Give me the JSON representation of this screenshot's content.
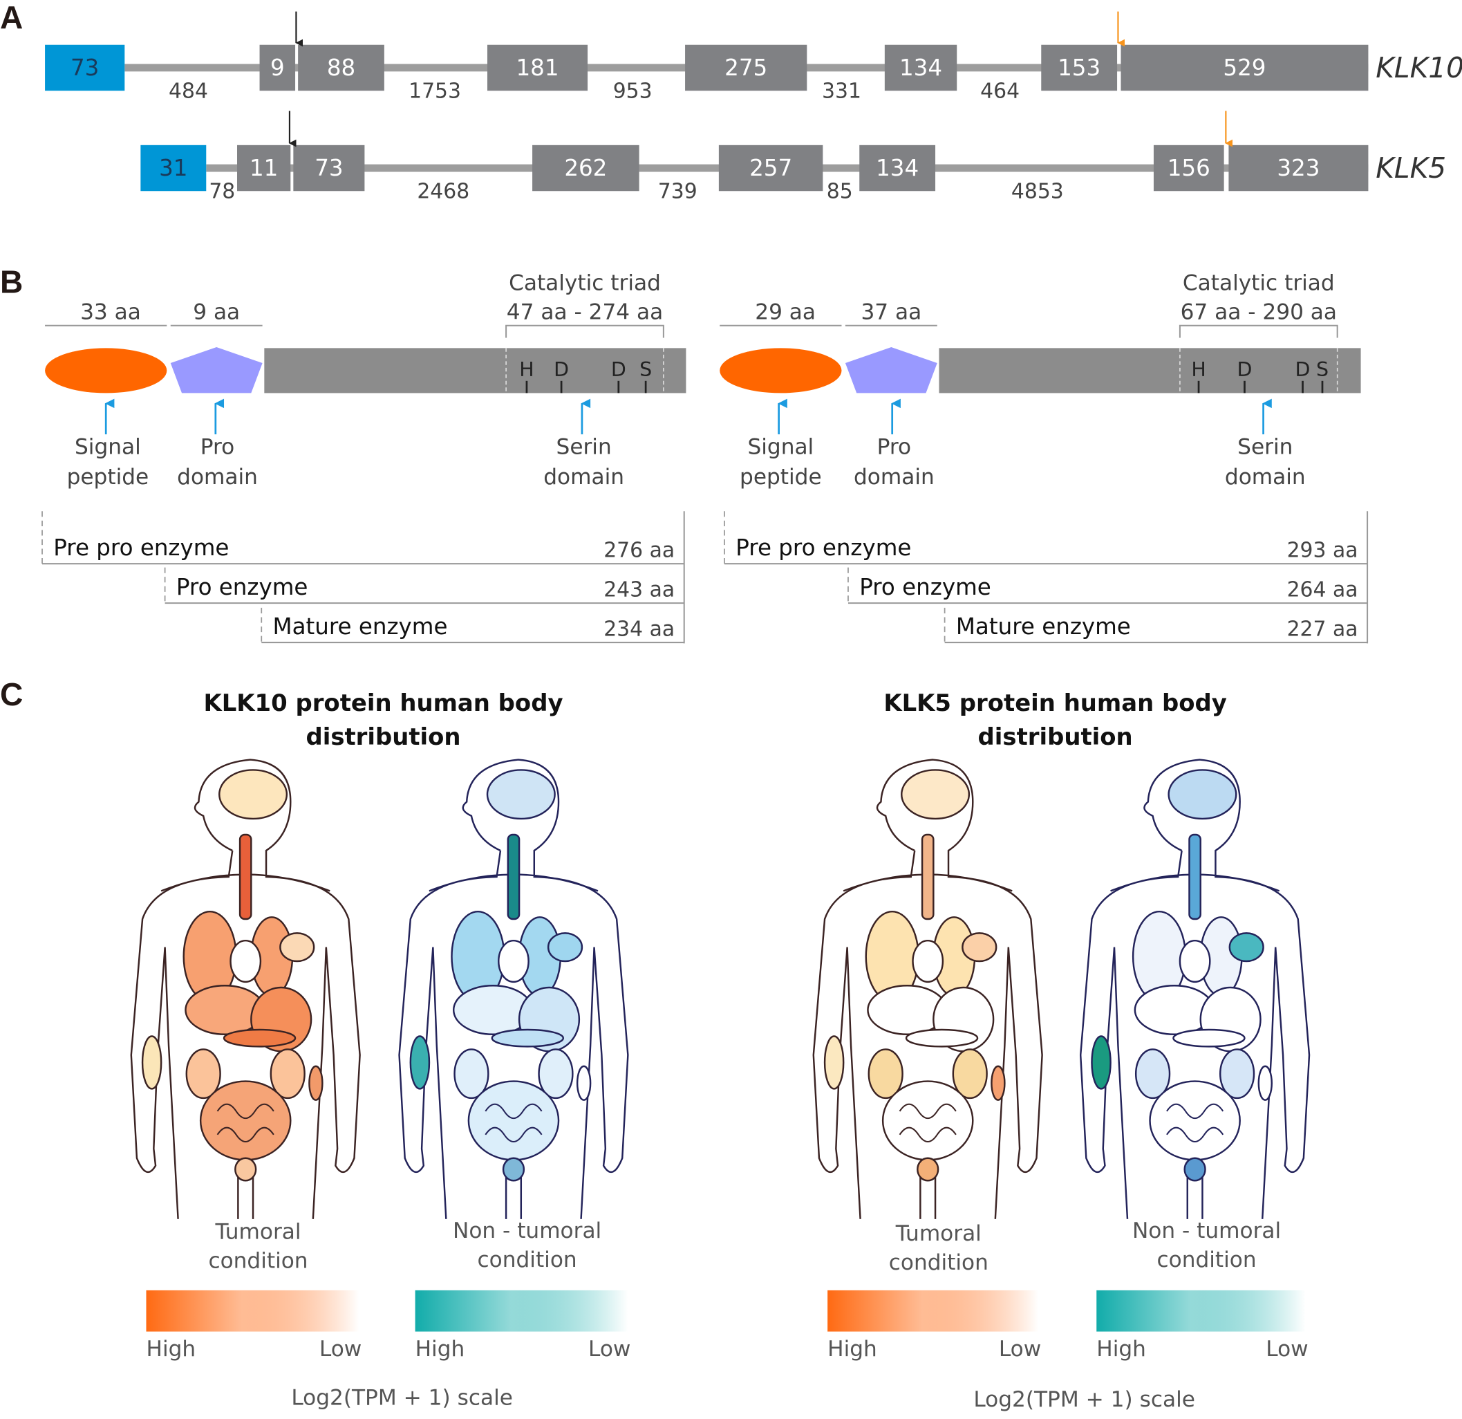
{
  "panels": {
    "a": "A",
    "b": "B",
    "c": "C"
  },
  "panel_a": {
    "klk10": {
      "gene": "KLK10",
      "exons": [
        "73",
        "9",
        "88",
        "181",
        "275",
        "134",
        "153",
        "529"
      ],
      "introns": [
        "484",
        "1753",
        "953",
        "331",
        "464"
      ]
    },
    "klk5": {
      "gene": "KLK5",
      "exons": [
        "31",
        "11",
        "73",
        "262",
        "257",
        "134",
        "156",
        "323"
      ],
      "introns": [
        "78",
        "2468",
        "739",
        "85",
        "4853"
      ]
    },
    "colors": {
      "utr": "#0096d6",
      "exon": "#808184",
      "intron": "#9d9d9d",
      "start_arrow": "#222222",
      "stop_arrow": "#f7941d"
    }
  },
  "panel_b": {
    "klk10": {
      "signal_len": "33 aa",
      "pro_len": "9 aa",
      "triad_title": "Catalytic triad",
      "triad_range": "47 aa - 274 aa",
      "residues": [
        "H",
        "D",
        "D",
        "S"
      ],
      "signal_label": [
        "Signal",
        "peptide"
      ],
      "pro_label": [
        "Pro",
        "domain"
      ],
      "serin_label": [
        "Serin",
        "domain"
      ],
      "enzymes": [
        {
          "name": "Pre pro enzyme",
          "length": "276 aa"
        },
        {
          "name": "Pro enzyme",
          "length": "243 aa"
        },
        {
          "name": "Mature enzyme",
          "length": "234 aa"
        }
      ]
    },
    "klk5": {
      "signal_len": "29 aa",
      "pro_len": "37 aa",
      "triad_title": "Catalytic triad",
      "triad_range": "67 aa - 290 aa",
      "residues": [
        "H",
        "D",
        "D",
        "S"
      ],
      "signal_label": [
        "Signal",
        "peptide"
      ],
      "pro_label": [
        "Pro",
        "domain"
      ],
      "serin_label": [
        "Serin",
        "domain"
      ],
      "enzymes": [
        {
          "name": "Pre pro enzyme",
          "length": "293 aa"
        },
        {
          "name": "Pro enzyme",
          "length": "264 aa"
        },
        {
          "name": "Mature enzyme",
          "length": "227 aa"
        }
      ]
    },
    "colors": {
      "signal": "#ff6600",
      "pro": "#9999ff",
      "serin": "#8c8c8c",
      "arrow": "#1b9be0"
    }
  },
  "panel_c": {
    "klk10": {
      "title": [
        "KLK10 protein human body",
        "distribution"
      ],
      "scale_label": "Log2(TPM + 1) scale"
    },
    "klk5": {
      "title": [
        "KLK5 protein human body",
        "distribution"
      ],
      "scale_label": "Log2(TPM + 1) scale"
    },
    "figures": [
      {
        "condition": [
          "Tumoral",
          "condition"
        ],
        "high": "High",
        "low": "Low",
        "gradient": [
          "#ff6a13",
          "#ffffff"
        ],
        "stroke": "#3b2323",
        "organ_colors": {
          "brain": "#fde6bd",
          "esophagus": "#e8603a",
          "lung": "#f7a070",
          "heart": "#ffffff",
          "spleen": "#fbd9b5",
          "liver": "#f8a77a",
          "stomach": "#f58f5a",
          "pancreas": "#ef7b45",
          "kidney": "#fbc39a",
          "intestine": "#f5a477",
          "bladder": "#f9c8a0",
          "arm": "#fbe6b8",
          "thigh": "#f29a6a"
        }
      },
      {
        "condition": [
          "Non - tumoral",
          "condition"
        ],
        "high": "High",
        "low": "Low",
        "gradient": [
          "#12acaa",
          "#ffffff"
        ],
        "stroke": "#23235a",
        "organ_colors": {
          "brain": "#cfe4f5",
          "esophagus": "#1a8a8a",
          "lung": "#a3d8f0",
          "heart": "#ffffff",
          "spleen": "#9fd6ef",
          "liver": "#e5f2fb",
          "stomach": "#cfe6f7",
          "pancreas": "#bfe0f5",
          "kidney": "#e0effa",
          "intestine": "#dbeefa",
          "bladder": "#7fb8d8",
          "arm": "#3ab0b0",
          "thigh": "#ffffff"
        }
      },
      {
        "condition": [
          "Tumoral",
          "condition"
        ],
        "high": "High",
        "low": "Low",
        "gradient": [
          "#ff6a13",
          "#ffffff"
        ],
        "stroke": "#3b2323",
        "organ_colors": {
          "brain": "#fde8c8",
          "esophagus": "#f2b58a",
          "lung": "#fde3b0",
          "heart": "#ffffff",
          "spleen": "#fbd0a8",
          "liver": "#ffffff",
          "stomach": "#ffffff",
          "pancreas": "#ffffff",
          "kidney": "#f8d9a0",
          "intestine": "#ffffff",
          "bladder": "#f4b078",
          "arm": "#fbe8c0",
          "thigh": "#f5a070"
        }
      },
      {
        "condition": [
          "Non - tumoral",
          "condition"
        ],
        "high": "High",
        "low": "Low",
        "gradient": [
          "#12acaa",
          "#ffffff"
        ],
        "stroke": "#23235a",
        "organ_colors": {
          "brain": "#bcdaf2",
          "esophagus": "#5aa8d8",
          "lung": "#eef3fb",
          "heart": "#ffffff",
          "spleen": "#4ab8c0",
          "liver": "#ffffff",
          "stomach": "#ffffff",
          "pancreas": "#ffffff",
          "kidney": "#d6e6f7",
          "intestine": "#ffffff",
          "bladder": "#5a9ad0",
          "arm": "#1a9a80",
          "thigh": "#ffffff"
        }
      }
    ]
  }
}
